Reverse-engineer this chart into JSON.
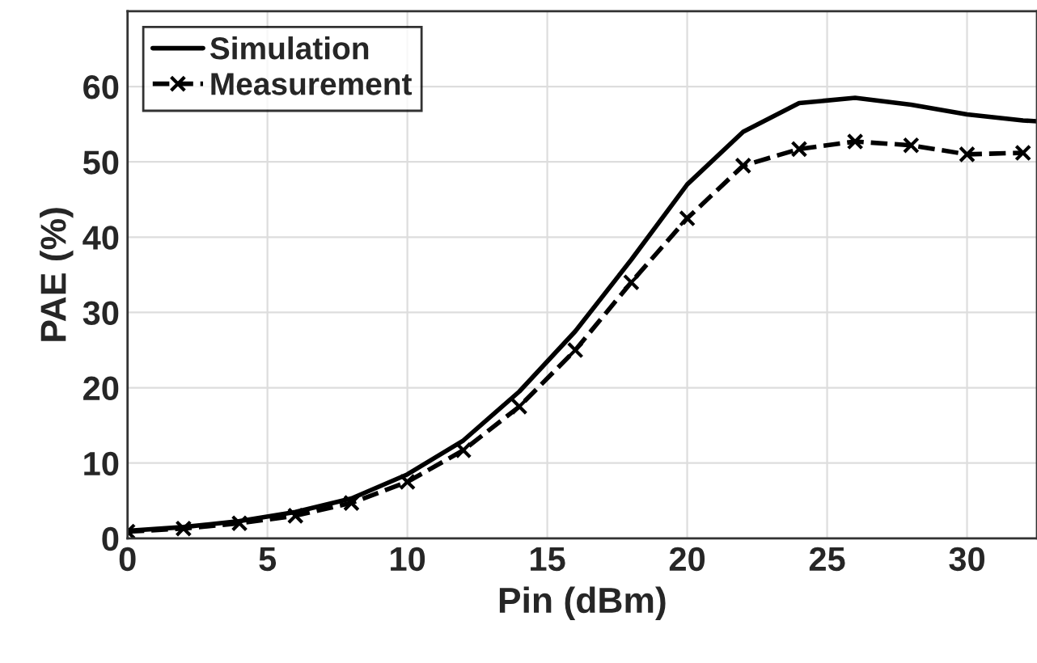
{
  "chart_data": {
    "type": "line",
    "xlabel": "Pin (dBm)",
    "ylabel": "PAE (%)",
    "xlim": [
      0,
      32.5
    ],
    "xticks": [
      0,
      5,
      10,
      15,
      20,
      25,
      30
    ],
    "ylim": [
      0,
      70
    ],
    "yticks": [
      0,
      10,
      20,
      30,
      40,
      50,
      60
    ],
    "grid": true,
    "legend": "top left",
    "series": [
      {
        "name": "Simulation",
        "color": "#000000",
        "line_style": "solid",
        "marker": "none",
        "x": [
          0,
          2,
          4,
          6,
          8,
          10,
          12,
          14,
          16,
          18,
          20,
          22,
          24,
          26,
          28,
          30,
          32,
          32.5
        ],
        "values": [
          1,
          1.5,
          2.3,
          3.5,
          5.3,
          8.5,
          13,
          19.5,
          27.5,
          37,
          47,
          54,
          57.8,
          58.5,
          57.6,
          56.3,
          55.5,
          55.4
        ]
      },
      {
        "name": "Measurement",
        "color": "#000000",
        "line_style": "dashed",
        "marker": "cross",
        "x": [
          0,
          2,
          4,
          6,
          8,
          10,
          12,
          14,
          16,
          18,
          20,
          22,
          24,
          26,
          28,
          30,
          32
        ],
        "values": [
          0.9,
          1.3,
          2,
          3,
          4.7,
          7.5,
          11.7,
          17.5,
          25,
          34,
          42.5,
          49.5,
          51.7,
          52.7,
          52.2,
          51,
          51.2
        ]
      }
    ]
  }
}
